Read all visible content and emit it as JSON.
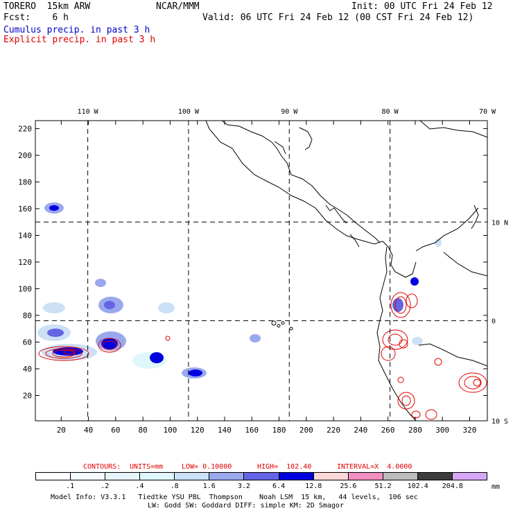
{
  "header": {
    "model": "TORERO  15km ARW",
    "center": "NCAR/MMM",
    "init": "Init: 00 UTC Fri 24 Feb 12",
    "fcst": "Fcst:    6 h",
    "valid": "Valid: 06 UTC Fri 24 Feb 12 (00 CST Fri 24 Feb 12)",
    "cumulus_label": "Cumulus precip. in past 3 h",
    "explicit_label": "Explicit precip. in past 3 h"
  },
  "colors": {
    "cumulus": "#0000c8",
    "explicit": "#e00000"
  },
  "map": {
    "x_ticks": [
      20,
      40,
      60,
      80,
      100,
      120,
      140,
      160,
      180,
      200,
      220,
      240,
      260,
      280,
      300,
      320
    ],
    "y_ticks": [
      20,
      40,
      60,
      80,
      100,
      120,
      140,
      160,
      180,
      200,
      220
    ],
    "grid_range": {
      "x": [
        1,
        333
      ],
      "y": [
        1,
        226
      ]
    },
    "longitudes": [
      {
        "label": "110 W",
        "x": 39.5
      },
      {
        "label": "100 W",
        "x": 113.5
      },
      {
        "label": "90 W",
        "x": 187.5
      },
      {
        "label": "80 W",
        "x": 261.5
      },
      {
        "label": "70 W",
        "x": 333
      }
    ],
    "latitudes": [
      {
        "label": "10 N",
        "y": 150
      },
      {
        "label": "0",
        "y": 76
      },
      {
        "label": "10 S",
        "y": 1
      }
    ]
  },
  "contours_info": {
    "contours": "CONTOURS:",
    "units": "UNITS=mm",
    "low": "LOW= 0.10000",
    "high": "HIGH=  102.40",
    "interval": "INTERVAL=X  4.0000"
  },
  "colorbar": {
    "colors": [
      "#ffffff",
      "#f4fafd",
      "#e8f4fb",
      "#dff6fa",
      "#cce0f6",
      "#9aa8ee",
      "#6464e4",
      "#0000e0",
      "#fbd8d8",
      "#f090c0",
      "#bcbcbc",
      "#3c3c3c",
      "#d8a8f8"
    ],
    "labels": [
      ".1",
      ".2",
      ".4",
      ".8",
      "1.6",
      "3.2",
      "6.4",
      "12.8",
      "25.6",
      "51.2",
      "102.4",
      "204.8"
    ],
    "unit": "mm"
  },
  "footer": {
    "line1": "Model Info: V3.3.1   Tiedtke YSU PBL  Thompson    Noah LSM  15 km,   44 levels,  106 sec",
    "line2": "LW: Godd SW: Goddard DIFF: simple KM: 2D Smagor"
  }
}
